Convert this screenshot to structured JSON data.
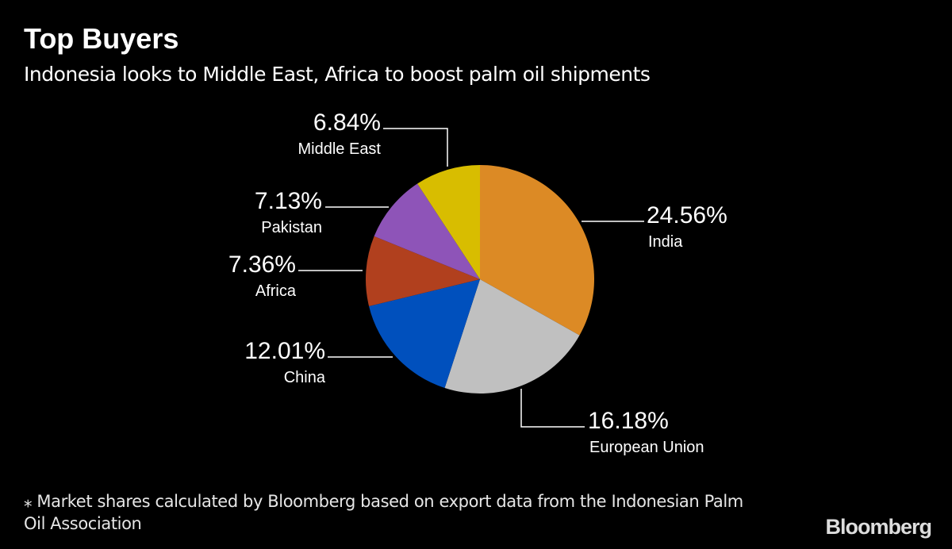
{
  "title": "Top Buyers",
  "subtitle": "Indonesia looks to Middle East, Africa to boost palm oil shipments",
  "footnote": "⁎ Market shares calculated by Bloomberg based on export data from the Indonesian Palm Oil Association",
  "logo": "Bloomberg",
  "chart_data": {
    "type": "pie",
    "start": "top, clockwise",
    "slices": [
      {
        "label": "India",
        "value": 24.56,
        "display": "24.56%",
        "color": "#dc8a25"
      },
      {
        "label": "European Union",
        "value": 16.18,
        "display": "16.18%",
        "color": "#c0c0c0"
      },
      {
        "label": "China",
        "value": 12.01,
        "display": "12.01%",
        "color": "#0050bd"
      },
      {
        "label": "Africa",
        "value": 7.36,
        "display": "7.36%",
        "color": "#b1401e"
      },
      {
        "label": "Pakistan",
        "value": 7.13,
        "display": "7.13%",
        "color": "#8e54b8"
      },
      {
        "label": "Middle East",
        "value": 6.84,
        "display": "6.84%",
        "color": "#d8bd00"
      }
    ]
  }
}
